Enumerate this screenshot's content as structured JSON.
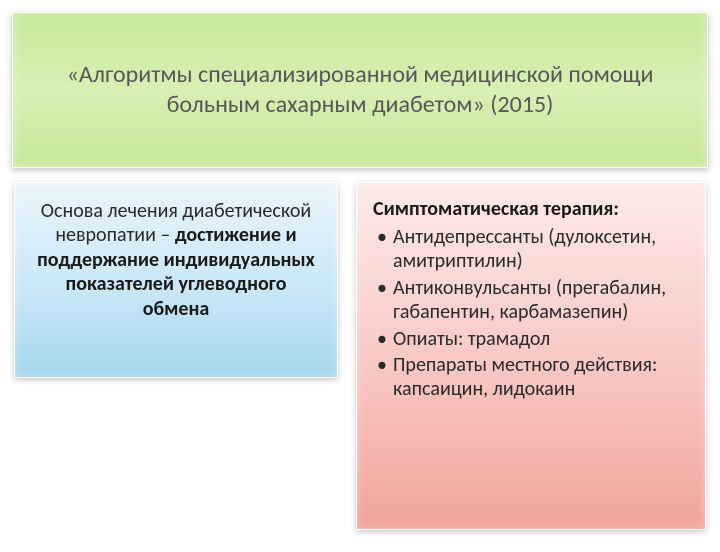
{
  "header": {
    "title": "«Алгоритмы специализированной медицинской помощи больным сахарным диабетом» (2015)"
  },
  "left": {
    "line1": "Основа лечения диабетической невропатии – ",
    "line2": "достижение и поддержание индивидуальных показателей углеводного обмена"
  },
  "right": {
    "heading": "Симптоматическая терапия:",
    "items": [
      "Антидепрессанты (дулоксетин, амитриптилин)",
      "Антиконвульсанты (прегабалин, габапентин, карбамазепин)",
      "Опиаты: трамадол",
      "Препараты местного действия: капсаицин, лидокаин"
    ]
  },
  "colors": {
    "header_bg_top": "#c7e89a",
    "header_bg_bottom": "#c7e89a",
    "left_bg_top": "#eaf5fc",
    "left_bg_bottom": "#a4d6ef",
    "right_bg_top": "#fdebe9",
    "right_bg_bottom": "#f1a39c",
    "text": "#2a2a2a",
    "header_text": "#575757"
  }
}
